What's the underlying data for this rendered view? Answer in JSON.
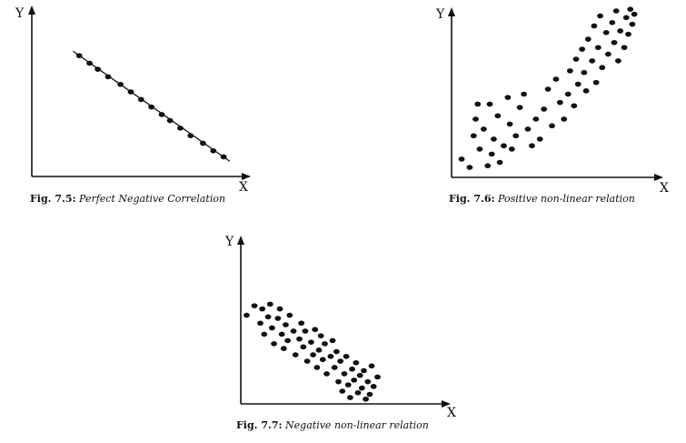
{
  "chart_data": [
    {
      "type": "scatter",
      "fit_line": true,
      "ylabel": "Y",
      "xlabel": "X",
      "caption_num": "Fig. 7.5:",
      "caption_text": "Perfect Negative Correlation",
      "grid": false,
      "points": [
        {
          "x": 0.23,
          "y": 0.8
        },
        {
          "x": 0.28,
          "y": 0.75
        },
        {
          "x": 0.32,
          "y": 0.71
        },
        {
          "x": 0.37,
          "y": 0.66
        },
        {
          "x": 0.43,
          "y": 0.61
        },
        {
          "x": 0.48,
          "y": 0.56
        },
        {
          "x": 0.53,
          "y": 0.51
        },
        {
          "x": 0.58,
          "y": 0.46
        },
        {
          "x": 0.63,
          "y": 0.41
        },
        {
          "x": 0.67,
          "y": 0.37
        },
        {
          "x": 0.72,
          "y": 0.32
        },
        {
          "x": 0.77,
          "y": 0.27
        },
        {
          "x": 0.83,
          "y": 0.22
        },
        {
          "x": 0.88,
          "y": 0.17
        },
        {
          "x": 0.93,
          "y": 0.13
        }
      ],
      "line": [
        {
          "x": 0.2,
          "y": 0.83
        },
        {
          "x": 0.96,
          "y": 0.1
        }
      ]
    },
    {
      "type": "scatter",
      "ylabel": "Y",
      "xlabel": "X",
      "caption_num": "Fig. 7.6:",
      "caption_text": "Positive non-linear relation",
      "grid": false,
      "points": [
        {
          "x": 0.05,
          "y": 0.11
        },
        {
          "x": 0.09,
          "y": 0.06
        },
        {
          "x": 0.11,
          "y": 0.25
        },
        {
          "x": 0.12,
          "y": 0.35
        },
        {
          "x": 0.13,
          "y": 0.44
        },
        {
          "x": 0.14,
          "y": 0.17
        },
        {
          "x": 0.16,
          "y": 0.29
        },
        {
          "x": 0.18,
          "y": 0.07
        },
        {
          "x": 0.19,
          "y": 0.44
        },
        {
          "x": 0.2,
          "y": 0.14
        },
        {
          "x": 0.21,
          "y": 0.23
        },
        {
          "x": 0.23,
          "y": 0.37
        },
        {
          "x": 0.24,
          "y": 0.09
        },
        {
          "x": 0.26,
          "y": 0.19
        },
        {
          "x": 0.28,
          "y": 0.48
        },
        {
          "x": 0.29,
          "y": 0.32
        },
        {
          "x": 0.3,
          "y": 0.17
        },
        {
          "x": 0.32,
          "y": 0.25
        },
        {
          "x": 0.34,
          "y": 0.42
        },
        {
          "x": 0.36,
          "y": 0.5
        },
        {
          "x": 0.38,
          "y": 0.29
        },
        {
          "x": 0.4,
          "y": 0.19
        },
        {
          "x": 0.42,
          "y": 0.35
        },
        {
          "x": 0.44,
          "y": 0.23
        },
        {
          "x": 0.46,
          "y": 0.41
        },
        {
          "x": 0.48,
          "y": 0.53
        },
        {
          "x": 0.5,
          "y": 0.31
        },
        {
          "x": 0.52,
          "y": 0.59
        },
        {
          "x": 0.54,
          "y": 0.45
        },
        {
          "x": 0.56,
          "y": 0.35
        },
        {
          "x": 0.58,
          "y": 0.5
        },
        {
          "x": 0.59,
          "y": 0.64
        },
        {
          "x": 0.61,
          "y": 0.43
        },
        {
          "x": 0.62,
          "y": 0.71
        },
        {
          "x": 0.63,
          "y": 0.56
        },
        {
          "x": 0.65,
          "y": 0.77
        },
        {
          "x": 0.66,
          "y": 0.63
        },
        {
          "x": 0.67,
          "y": 0.52
        },
        {
          "x": 0.68,
          "y": 0.83
        },
        {
          "x": 0.7,
          "y": 0.7
        },
        {
          "x": 0.71,
          "y": 0.91
        },
        {
          "x": 0.72,
          "y": 0.57
        },
        {
          "x": 0.73,
          "y": 0.78
        },
        {
          "x": 0.74,
          "y": 0.97
        },
        {
          "x": 0.75,
          "y": 0.66
        },
        {
          "x": 0.77,
          "y": 0.87
        },
        {
          "x": 0.78,
          "y": 0.74
        },
        {
          "x": 0.8,
          "y": 0.93
        },
        {
          "x": 0.81,
          "y": 0.81
        },
        {
          "x": 0.82,
          "y": 1.0
        },
        {
          "x": 0.83,
          "y": 0.7
        },
        {
          "x": 0.84,
          "y": 0.88
        },
        {
          "x": 0.86,
          "y": 0.78
        },
        {
          "x": 0.87,
          "y": 0.96
        },
        {
          "x": 0.88,
          "y": 0.86
        },
        {
          "x": 0.89,
          "y": 1.01
        },
        {
          "x": 0.9,
          "y": 0.92
        },
        {
          "x": 0.91,
          "y": 0.98
        }
      ]
    },
    {
      "type": "scatter",
      "ylabel": "Y",
      "xlabel": "X",
      "caption_num": "Fig. 7.7:",
      "caption_text": "Negative non-linear relation",
      "grid": false,
      "points": [
        {
          "x": 0.03,
          "y": 0.56
        },
        {
          "x": 0.07,
          "y": 0.62
        },
        {
          "x": 0.1,
          "y": 0.51
        },
        {
          "x": 0.11,
          "y": 0.6
        },
        {
          "x": 0.12,
          "y": 0.44
        },
        {
          "x": 0.14,
          "y": 0.55
        },
        {
          "x": 0.15,
          "y": 0.63
        },
        {
          "x": 0.16,
          "y": 0.48
        },
        {
          "x": 0.17,
          "y": 0.38
        },
        {
          "x": 0.19,
          "y": 0.54
        },
        {
          "x": 0.2,
          "y": 0.6
        },
        {
          "x": 0.21,
          "y": 0.44
        },
        {
          "x": 0.22,
          "y": 0.35
        },
        {
          "x": 0.23,
          "y": 0.5
        },
        {
          "x": 0.24,
          "y": 0.4
        },
        {
          "x": 0.25,
          "y": 0.56
        },
        {
          "x": 0.27,
          "y": 0.46
        },
        {
          "x": 0.28,
          "y": 0.31
        },
        {
          "x": 0.3,
          "y": 0.41
        },
        {
          "x": 0.31,
          "y": 0.51
        },
        {
          "x": 0.32,
          "y": 0.36
        },
        {
          "x": 0.33,
          "y": 0.46
        },
        {
          "x": 0.34,
          "y": 0.27
        },
        {
          "x": 0.36,
          "y": 0.39
        },
        {
          "x": 0.37,
          "y": 0.31
        },
        {
          "x": 0.38,
          "y": 0.47
        },
        {
          "x": 0.39,
          "y": 0.23
        },
        {
          "x": 0.4,
          "y": 0.34
        },
        {
          "x": 0.41,
          "y": 0.43
        },
        {
          "x": 0.42,
          "y": 0.28
        },
        {
          "x": 0.43,
          "y": 0.38
        },
        {
          "x": 0.44,
          "y": 0.19
        },
        {
          "x": 0.46,
          "y": 0.3
        },
        {
          "x": 0.47,
          "y": 0.4
        },
        {
          "x": 0.48,
          "y": 0.23
        },
        {
          "x": 0.49,
          "y": 0.33
        },
        {
          "x": 0.5,
          "y": 0.14
        },
        {
          "x": 0.51,
          "y": 0.27
        },
        {
          "x": 0.52,
          "y": 0.08
        },
        {
          "x": 0.53,
          "y": 0.19
        },
        {
          "x": 0.54,
          "y": 0.3
        },
        {
          "x": 0.55,
          "y": 0.12
        },
        {
          "x": 0.56,
          "y": 0.04
        },
        {
          "x": 0.57,
          "y": 0.22
        },
        {
          "x": 0.58,
          "y": 0.15
        },
        {
          "x": 0.59,
          "y": 0.26
        },
        {
          "x": 0.6,
          "y": 0.07
        },
        {
          "x": 0.61,
          "y": 0.18
        },
        {
          "x": 0.62,
          "y": 0.1
        },
        {
          "x": 0.63,
          "y": 0.21
        },
        {
          "x": 0.64,
          "y": 0.03
        },
        {
          "x": 0.65,
          "y": 0.14
        },
        {
          "x": 0.66,
          "y": 0.06
        },
        {
          "x": 0.67,
          "y": 0.24
        },
        {
          "x": 0.68,
          "y": 0.11
        },
        {
          "x": 0.7,
          "y": 0.17
        }
      ]
    }
  ]
}
